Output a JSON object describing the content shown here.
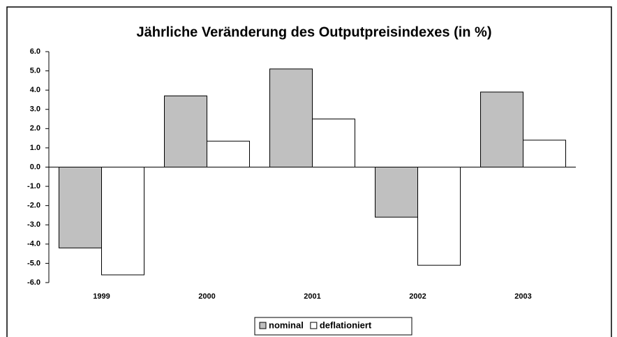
{
  "chart_data": {
    "type": "bar",
    "title": "Jährliche Veränderung des Outputpreisindexes (in %)",
    "categories": [
      "1999",
      "2000",
      "2001",
      "2002",
      "2003"
    ],
    "series": [
      {
        "name": "nominal",
        "color": "#c0c0c0",
        "values": [
          -4.2,
          3.7,
          5.1,
          -2.6,
          3.9
        ]
      },
      {
        "name": "deflationiert",
        "color": "#ffffff",
        "values": [
          -5.6,
          1.35,
          2.5,
          -5.1,
          1.4
        ]
      }
    ],
    "ylim": [
      -6,
      6
    ],
    "yticks": [
      {
        "value": 6,
        "label": "6.0"
      },
      {
        "value": 5,
        "label": "5.0"
      },
      {
        "value": 4,
        "label": "4.0"
      },
      {
        "value": 3,
        "label": "3.0"
      },
      {
        "value": 2,
        "label": "2.0"
      },
      {
        "value": 1,
        "label": "1.0"
      },
      {
        "value": 0,
        "label": "0.0"
      },
      {
        "value": -1,
        "label": "-1.0"
      },
      {
        "value": -2,
        "label": "-2.0"
      },
      {
        "value": -3,
        "label": "-3.0"
      },
      {
        "value": -4,
        "label": "-4.0"
      },
      {
        "value": -5,
        "label": "-5.0"
      },
      {
        "value": -6,
        "label": "-6.0"
      }
    ],
    "grid": false,
    "legend": "bottom"
  }
}
